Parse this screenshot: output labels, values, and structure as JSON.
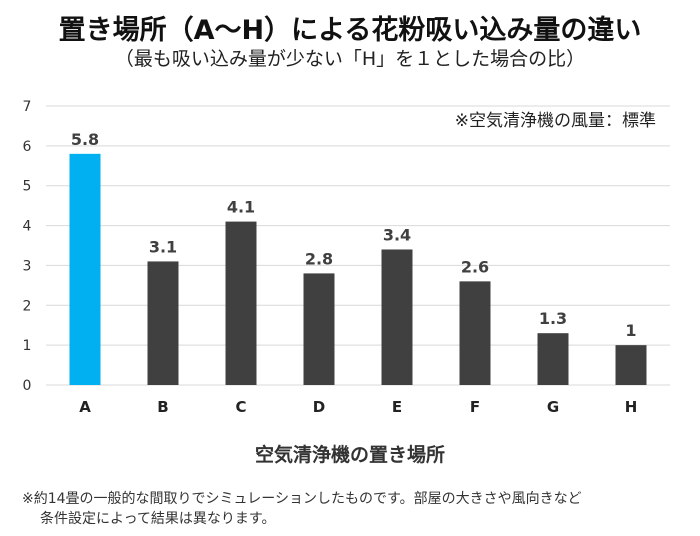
{
  "chart_data": {
    "type": "bar",
    "title": "置き場所（A〜H）による花粉吸い込み量の違い",
    "subtitle": "（最も吸い込み量が少ない「H」を１とした場合の比）",
    "annotation": "※空気清浄機の風量：標準",
    "xlabel": "空気清浄機の置き場所",
    "ylabel": "",
    "categories": [
      "A",
      "B",
      "C",
      "D",
      "E",
      "F",
      "G",
      "H"
    ],
    "values": [
      5.8,
      3.1,
      4.1,
      2.8,
      3.4,
      2.6,
      1.3,
      1
    ],
    "data_labels": [
      "5.8",
      "3.1",
      "4.1",
      "2.8",
      "3.4",
      "2.6",
      "1.3",
      "1"
    ],
    "ylim": [
      0,
      7
    ],
    "yticks": [
      "0",
      "1",
      "2",
      "3",
      "4",
      "5",
      "6",
      "7"
    ],
    "grid": true,
    "colors": {
      "highlight": "#00B0F0",
      "default": "#404040",
      "grid": "#D9D9D9"
    }
  },
  "footnote": {
    "line1": "※約14畳の一般的な間取りでシミュレーションしたものです。部屋の大きさや風向きなど",
    "line2": "条件設定によって結果は異なります。"
  }
}
